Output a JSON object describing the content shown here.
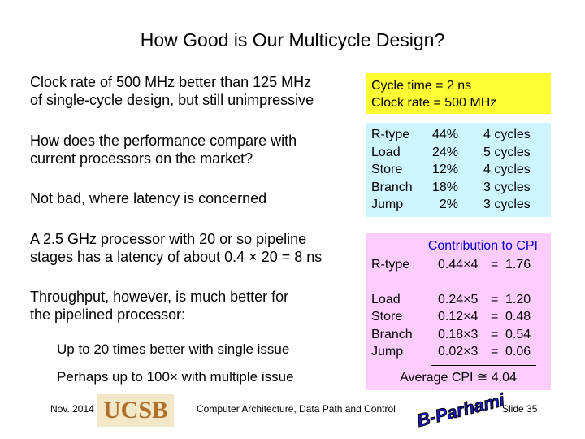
{
  "title": "How Good is Our Multicycle Design?",
  "left": [
    [
      "Clock rate of 500 MHz better than 125 MHz",
      "of single-cycle design, but still unimpressive"
    ],
    [
      "How does the performance compare with",
      "current processors on the market?"
    ],
    [
      "Not bad, where latency is concerned"
    ],
    [
      "A 2.5 GHz processor with 20 or so pipeline",
      "stages has a latency of about 0.4 × 20 = 8 ns"
    ],
    [
      "Throughput, however, is much better for",
      "the pipelined processor:"
    ],
    [
      "Up to 20 times better with single issue"
    ],
    [
      "Perhaps up to 100× with multiple issue"
    ]
  ],
  "yellow": [
    "Cycle time = 2 ns",
    "Clock rate = 500 MHz"
  ],
  "mix": [
    [
      "R-type",
      "44%",
      "4 cycles"
    ],
    [
      "Load",
      "24%",
      "5 cycles"
    ],
    [
      "Store",
      "12%",
      "4 cycles"
    ],
    [
      "Branch",
      "18%",
      "3 cycles"
    ],
    [
      "Jump",
      "2%",
      "3 cycles"
    ]
  ],
  "cpi": {
    "heading": "Contribution to CPI",
    "rows": [
      [
        "R-type",
        "0.44×4",
        "=",
        "1.76"
      ],
      [
        "Load",
        "0.24×5",
        "=",
        "1.20"
      ],
      [
        "Store",
        "0.12×4",
        "=",
        "0.48"
      ],
      [
        "Branch",
        "0.18×3",
        "=",
        "0.54"
      ],
      [
        "Jump",
        "0.02×3",
        "=",
        "0.06"
      ]
    ],
    "total": "Average CPI ≅ 4.04"
  },
  "footer": {
    "date": "Nov. 2014",
    "logo_left": "UCSB",
    "course": "Computer Architecture, Data Path and Control",
    "logo_right": "B-Parhami",
    "slide": "Slide 35"
  }
}
